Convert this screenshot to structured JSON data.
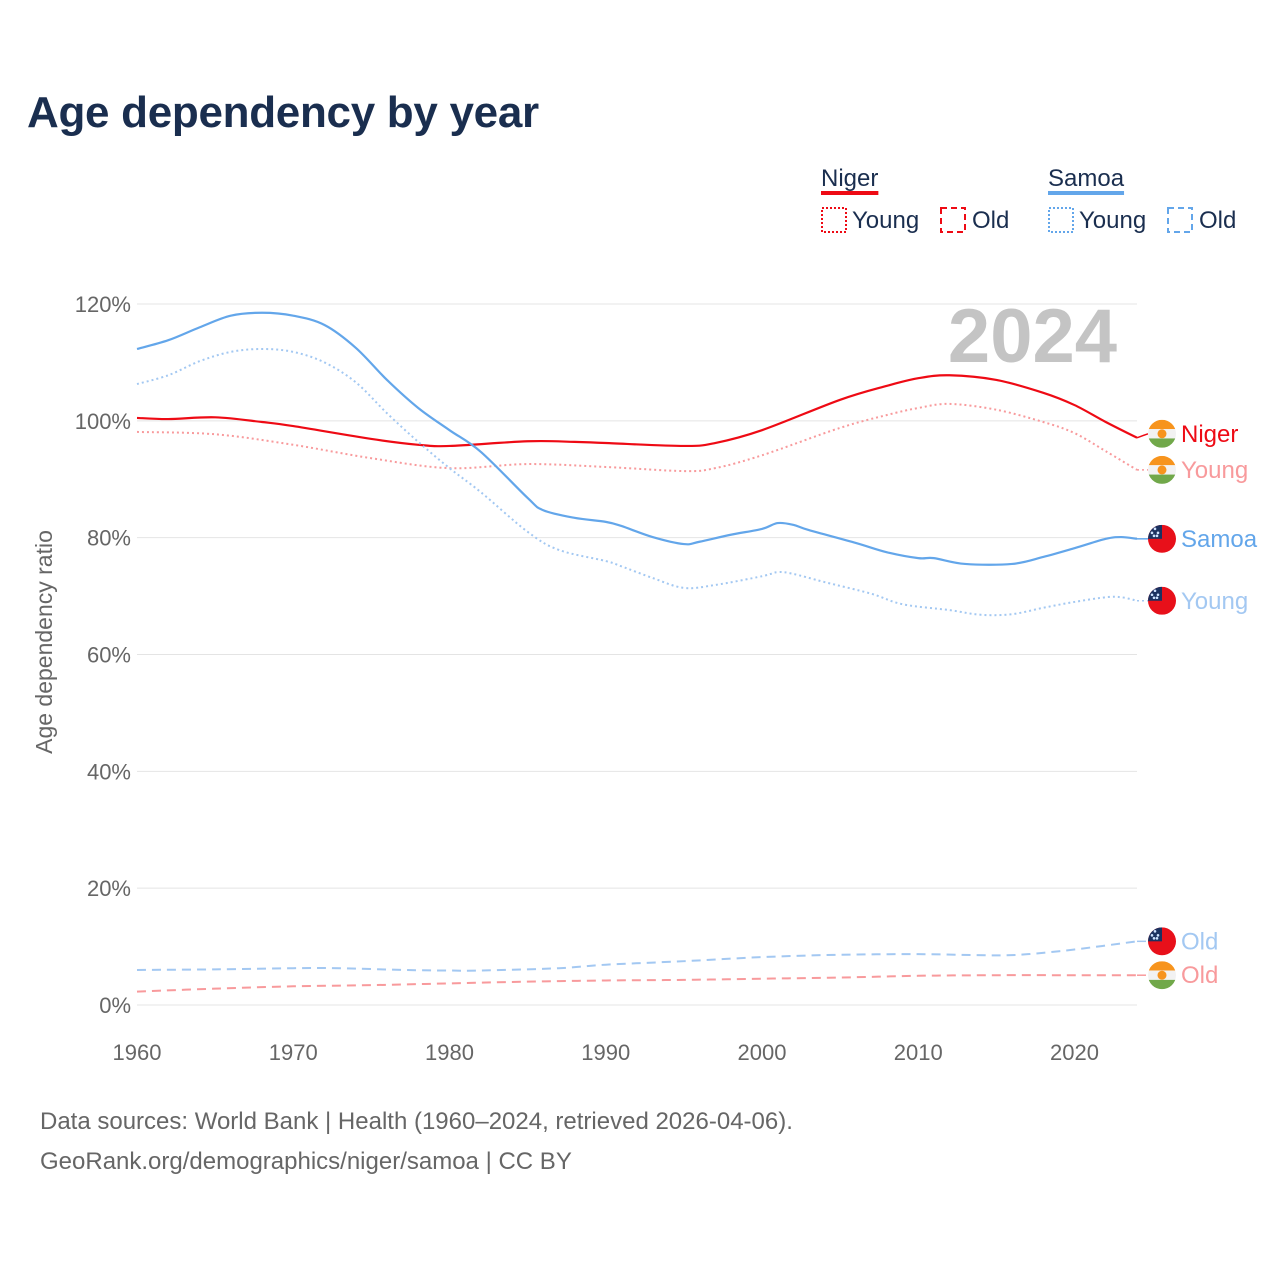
{
  "chart_data": {
    "type": "line",
    "title": "Age dependency by year",
    "xlabel": "",
    "ylabel": "Age dependency ratio",
    "xlim": [
      1960,
      2024
    ],
    "ylim": [
      0,
      120
    ],
    "x_ticks": [
      "1960",
      "1970",
      "1980",
      "1990",
      "2000",
      "2010",
      "2020"
    ],
    "x_tick_values": [
      1960,
      1970,
      1980,
      1990,
      2000,
      2010,
      2020
    ],
    "y_ticks": [
      "0%",
      "20%",
      "40%",
      "60%",
      "80%",
      "100%",
      "120%"
    ],
    "y_tick_values": [
      0,
      20,
      40,
      60,
      80,
      100,
      120
    ],
    "grid": true,
    "year_watermark": "2024",
    "legend": {
      "placement": "top-right",
      "groups": [
        {
          "country": "Niger",
          "color": "#ee0a14",
          "young": "Young",
          "old": "Old"
        },
        {
          "country": "Samoa",
          "color": "#63a6ea",
          "young": "Young",
          "old": "Old"
        }
      ]
    },
    "series": [
      {
        "name": "Niger",
        "country": "Niger",
        "kind": "total",
        "end_label": "Niger",
        "color": "#ee0a14",
        "dash": "solid",
        "points": [
          [
            1960,
            100.5
          ],
          [
            1962,
            100.3
          ],
          [
            1965,
            100.6
          ],
          [
            1968,
            99.8
          ],
          [
            1970,
            99.1
          ],
          [
            1975,
            96.9
          ],
          [
            1978,
            95.9
          ],
          [
            1980,
            95.7
          ],
          [
            1985,
            96.5
          ],
          [
            1988,
            96.4
          ],
          [
            1990,
            96.2
          ],
          [
            1995,
            95.7
          ],
          [
            1997,
            96.2
          ],
          [
            2000,
            98.4
          ],
          [
            2005,
            103.6
          ],
          [
            2008,
            106.0
          ],
          [
            2010,
            107.3
          ],
          [
            2012,
            107.8
          ],
          [
            2015,
            107.0
          ],
          [
            2018,
            104.8
          ],
          [
            2020,
            102.7
          ],
          [
            2022,
            99.8
          ],
          [
            2024,
            97.1
          ]
        ]
      },
      {
        "name": "Niger Young",
        "country": "Niger",
        "kind": "young",
        "end_label": "Young",
        "color": "#f89a9c",
        "dash": "dotted",
        "points": [
          [
            1960,
            98.1
          ],
          [
            1965,
            97.7
          ],
          [
            1970,
            95.9
          ],
          [
            1975,
            93.6
          ],
          [
            1980,
            91.9
          ],
          [
            1985,
            92.6
          ],
          [
            1990,
            92.1
          ],
          [
            1995,
            91.4
          ],
          [
            1997,
            91.9
          ],
          [
            2000,
            94.1
          ],
          [
            2005,
            98.8
          ],
          [
            2008,
            101.0
          ],
          [
            2010,
            102.2
          ],
          [
            2012,
            102.9
          ],
          [
            2015,
            101.9
          ],
          [
            2018,
            99.8
          ],
          [
            2020,
            97.9
          ],
          [
            2022,
            94.8
          ],
          [
            2024,
            91.6
          ]
        ]
      },
      {
        "name": "Niger Old",
        "country": "Niger",
        "kind": "old",
        "end_label": "Old",
        "color": "#f89a9c",
        "dash": "dashed",
        "points": [
          [
            1960,
            2.3
          ],
          [
            1965,
            2.8
          ],
          [
            1970,
            3.2
          ],
          [
            1975,
            3.4
          ],
          [
            1980,
            3.7
          ],
          [
            1985,
            4.0
          ],
          [
            1990,
            4.2
          ],
          [
            1995,
            4.3
          ],
          [
            2000,
            4.5
          ],
          [
            2005,
            4.7
          ],
          [
            2010,
            5.0
          ],
          [
            2015,
            5.1
          ],
          [
            2020,
            5.1
          ],
          [
            2024,
            5.1
          ]
        ]
      },
      {
        "name": "Samoa",
        "country": "Samoa",
        "kind": "total",
        "end_label": "Samoa",
        "color": "#63a6ea",
        "dash": "solid",
        "points": [
          [
            1960,
            112.3
          ],
          [
            1962,
            113.8
          ],
          [
            1964,
            116.0
          ],
          [
            1966,
            118.0
          ],
          [
            1968,
            118.5
          ],
          [
            1970,
            118.0
          ],
          [
            1972,
            116.4
          ],
          [
            1974,
            112.5
          ],
          [
            1976,
            107.0
          ],
          [
            1978,
            102.2
          ],
          [
            1980,
            98.4
          ],
          [
            1982,
            94.7
          ],
          [
            1985,
            86.8
          ],
          [
            1986,
            84.7
          ],
          [
            1988,
            83.4
          ],
          [
            1990,
            82.7
          ],
          [
            1991,
            82.0
          ],
          [
            1993,
            80.1
          ],
          [
            1995,
            78.9
          ],
          [
            1996,
            79.3
          ],
          [
            1998,
            80.5
          ],
          [
            2000,
            81.5
          ],
          [
            2001,
            82.5
          ],
          [
            2002,
            82.2
          ],
          [
            2003,
            81.3
          ],
          [
            2006,
            79.1
          ],
          [
            2008,
            77.5
          ],
          [
            2010,
            76.5
          ],
          [
            2011,
            76.5
          ],
          [
            2013,
            75.5
          ],
          [
            2016,
            75.5
          ],
          [
            2018,
            76.7
          ],
          [
            2020,
            78.2
          ],
          [
            2022,
            79.8
          ],
          [
            2023,
            80.1
          ],
          [
            2024,
            79.8
          ]
        ]
      },
      {
        "name": "Samoa Young",
        "country": "Samoa",
        "kind": "young",
        "end_label": "Young",
        "color": "#a3c8f2",
        "dash": "dotted",
        "points": [
          [
            1960,
            106.3
          ],
          [
            1962,
            107.8
          ],
          [
            1964,
            110.2
          ],
          [
            1966,
            111.8
          ],
          [
            1968,
            112.3
          ],
          [
            1970,
            111.8
          ],
          [
            1972,
            110.0
          ],
          [
            1974,
            106.6
          ],
          [
            1976,
            101.3
          ],
          [
            1978,
            96.4
          ],
          [
            1980,
            91.9
          ],
          [
            1982,
            87.8
          ],
          [
            1985,
            81.0
          ],
          [
            1987,
            77.9
          ],
          [
            1990,
            76.0
          ],
          [
            1991,
            75.1
          ],
          [
            1993,
            73.1
          ],
          [
            1995,
            71.4
          ],
          [
            1997,
            71.9
          ],
          [
            2000,
            73.4
          ],
          [
            2001,
            74.1
          ],
          [
            2002,
            73.8
          ],
          [
            2004,
            72.4
          ],
          [
            2007,
            70.4
          ],
          [
            2009,
            68.6
          ],
          [
            2012,
            67.6
          ],
          [
            2014,
            66.8
          ],
          [
            2016,
            66.9
          ],
          [
            2018,
            68.0
          ],
          [
            2020,
            69.0
          ],
          [
            2022,
            69.8
          ],
          [
            2023,
            69.8
          ],
          [
            2024,
            69.2
          ]
        ]
      },
      {
        "name": "Samoa Old",
        "country": "Samoa",
        "kind": "old",
        "end_label": "Old",
        "color": "#a3c8f2",
        "dash": "dashed",
        "points": [
          [
            1960,
            6.0
          ],
          [
            1965,
            6.1
          ],
          [
            1970,
            6.3
          ],
          [
            1973,
            6.3
          ],
          [
            1977,
            6.0
          ],
          [
            1980,
            5.9
          ],
          [
            1982,
            5.9
          ],
          [
            1987,
            6.3
          ],
          [
            1990,
            6.9
          ],
          [
            1995,
            7.5
          ],
          [
            2000,
            8.2
          ],
          [
            2005,
            8.6
          ],
          [
            2010,
            8.7
          ],
          [
            2015,
            8.5
          ],
          [
            2017,
            8.7
          ],
          [
            2020,
            9.5
          ],
          [
            2024,
            10.9
          ]
        ]
      }
    ]
  },
  "footer": {
    "line1": "Data sources: World Bank | Health (1960–2024, retrieved 2026-04-06).",
    "line2": "GeoRank.org/demographics/niger/samoa | CC BY"
  }
}
